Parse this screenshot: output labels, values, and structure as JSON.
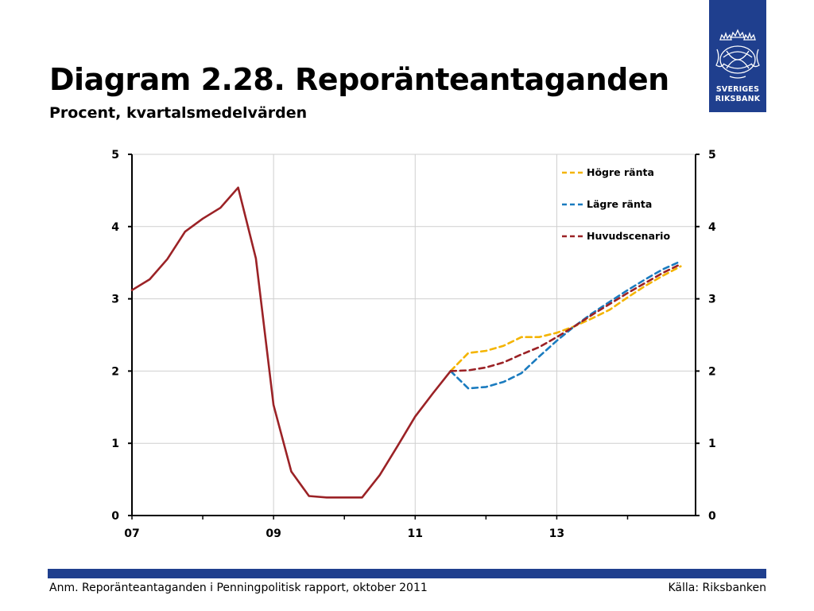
{
  "header": {
    "title": "Diagram 2.28. Reporänteantaganden",
    "subtitle": "Procent, kvartalsmedelvärden"
  },
  "logo": {
    "line1": "SVERIGES",
    "line2": "RIKSBANK"
  },
  "footer": {
    "note": "Anm. Reporänteantaganden i Penningpolitisk rapport, oktober 2011",
    "source": "Källa: Riksbanken"
  },
  "colors": {
    "brand": "#1f3f8e"
  },
  "chart_data": {
    "type": "line",
    "x_ticks": [
      "07",
      "09",
      "11",
      "13"
    ],
    "y_ticks": [
      0,
      1,
      2,
      3,
      4,
      5
    ],
    "ylim": [
      0,
      5
    ],
    "grid": true,
    "legend_position": "top-right",
    "series": [
      {
        "key": "historic",
        "style": "solid",
        "color": "#9b2226",
        "x": [
          2007.0,
          2007.25,
          2007.5,
          2007.75,
          2008.0,
          2008.25,
          2008.5,
          2008.75,
          2009.0,
          2009.25,
          2009.5,
          2009.75,
          2010.0,
          2010.25,
          2010.5,
          2010.75,
          2011.0,
          2011.25,
          2011.5
        ],
        "values": [
          3.12,
          3.27,
          3.55,
          3.93,
          4.11,
          4.26,
          4.54,
          3.56,
          1.53,
          0.61,
          0.27,
          0.25,
          0.25,
          0.25,
          0.56,
          0.96,
          1.37,
          1.69,
          2.0
        ]
      },
      {
        "name": "Högre ränta",
        "style": "dashed",
        "color": "#f4b400",
        "x": [
          2011.5,
          2011.75,
          2012.0,
          2012.25,
          2012.5,
          2012.75,
          2013.0,
          2013.25,
          2013.5,
          2013.75,
          2014.0,
          2014.25,
          2014.5,
          2014.75
        ],
        "values": [
          2.0,
          2.25,
          2.28,
          2.35,
          2.47,
          2.47,
          2.53,
          2.62,
          2.73,
          2.85,
          3.02,
          3.18,
          3.32,
          3.45
        ]
      },
      {
        "name": "Lägre ränta",
        "style": "dashed",
        "color": "#1a7bbf",
        "x": [
          2011.5,
          2011.75,
          2012.0,
          2012.25,
          2012.5,
          2012.75,
          2013.0,
          2013.25,
          2013.5,
          2013.75,
          2014.0,
          2014.25,
          2014.5,
          2014.75
        ],
        "values": [
          2.0,
          1.76,
          1.78,
          1.85,
          1.97,
          2.2,
          2.42,
          2.62,
          2.8,
          2.96,
          3.12,
          3.27,
          3.41,
          3.52
        ]
      },
      {
        "name": "Huvudscenario",
        "style": "dashed",
        "color": "#9b2226",
        "x": [
          2011.5,
          2011.75,
          2012.0,
          2012.25,
          2012.5,
          2012.75,
          2013.0,
          2013.25,
          2013.5,
          2013.75,
          2014.0,
          2014.25,
          2014.5,
          2014.75
        ],
        "values": [
          2.0,
          2.01,
          2.05,
          2.12,
          2.23,
          2.33,
          2.47,
          2.62,
          2.78,
          2.93,
          3.08,
          3.22,
          3.36,
          3.48
        ]
      }
    ]
  }
}
